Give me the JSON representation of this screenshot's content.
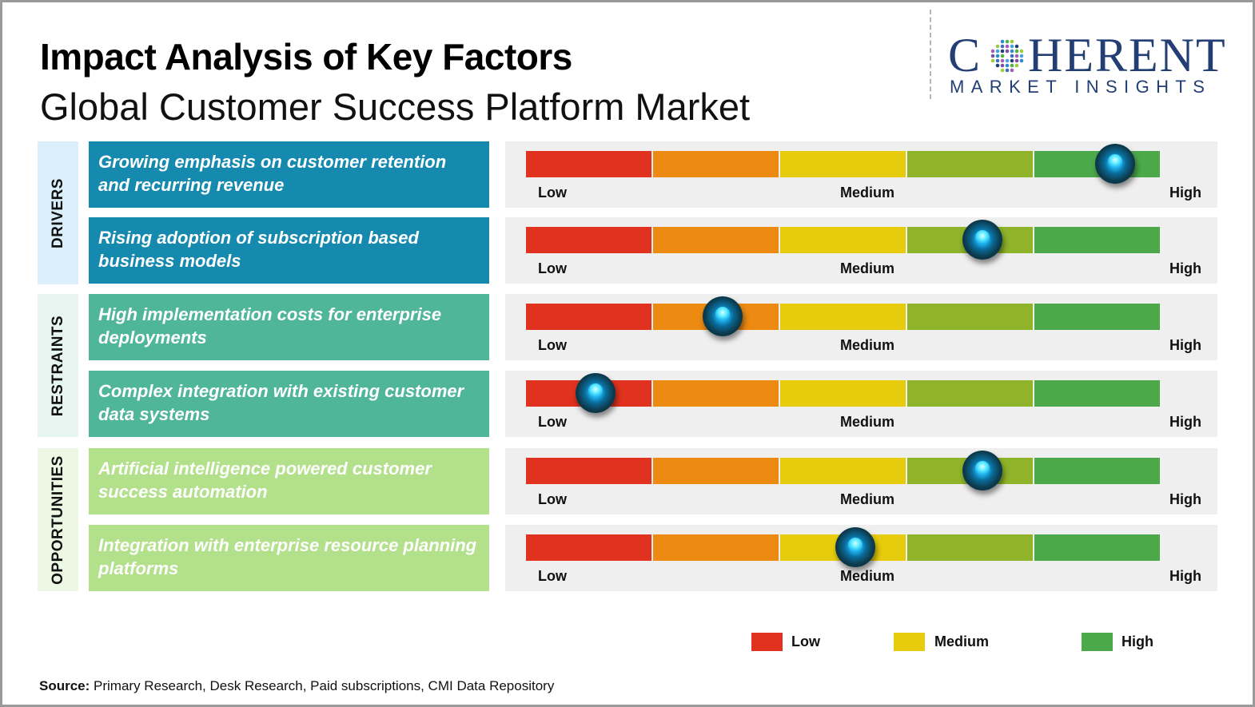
{
  "title": "Impact Analysis of Key Factors",
  "subtitle": "Global Customer Success Platform Market",
  "logo": {
    "line1": "C  HERENT",
    "line2": "MARKET INSIGHTS"
  },
  "colors": {
    "low": "#e0321e",
    "low_mid": "#ec8a12",
    "medium": "#e6cc0c",
    "mid_high": "#8fb42a",
    "high": "#4ca94a",
    "drivers_cat": "#daeffa",
    "drivers_factor": "#168aae",
    "restraints_cat": "#e6f5ef",
    "restraints_factor": "#4fb69a",
    "opportunities_cat": "#edf8e4",
    "opportunities_factor": "#b3e08b"
  },
  "source": {
    "label": "Source:",
    "text": " Primary Research, Desk Research, Paid subscriptions, CMI Data Repository"
  },
  "chart_data": {
    "type": "table",
    "scale": [
      "Low",
      "Medium",
      "High"
    ],
    "categories": [
      {
        "name": "DRIVERS",
        "factors": [
          {
            "label": "Growing emphasis on customer retention and recurring revenue",
            "impact": 0.93
          },
          {
            "label": "Rising adoption of subscription based business models",
            "impact": 0.72
          }
        ]
      },
      {
        "name": "RESTRAINTS",
        "factors": [
          {
            "label": "High implementation costs for enterprise deployments",
            "impact": 0.31
          },
          {
            "label": "Complex integration with existing customer data systems",
            "impact": 0.11
          }
        ]
      },
      {
        "name": "OPPORTUNITIES",
        "factors": [
          {
            "label": "Artificial intelligence powered customer success automation",
            "impact": 0.72
          },
          {
            "label": "Integration with enterprise resource planning platforms",
            "impact": 0.52
          }
        ]
      }
    ],
    "legend": [
      "Low",
      "Medium",
      "High"
    ]
  }
}
